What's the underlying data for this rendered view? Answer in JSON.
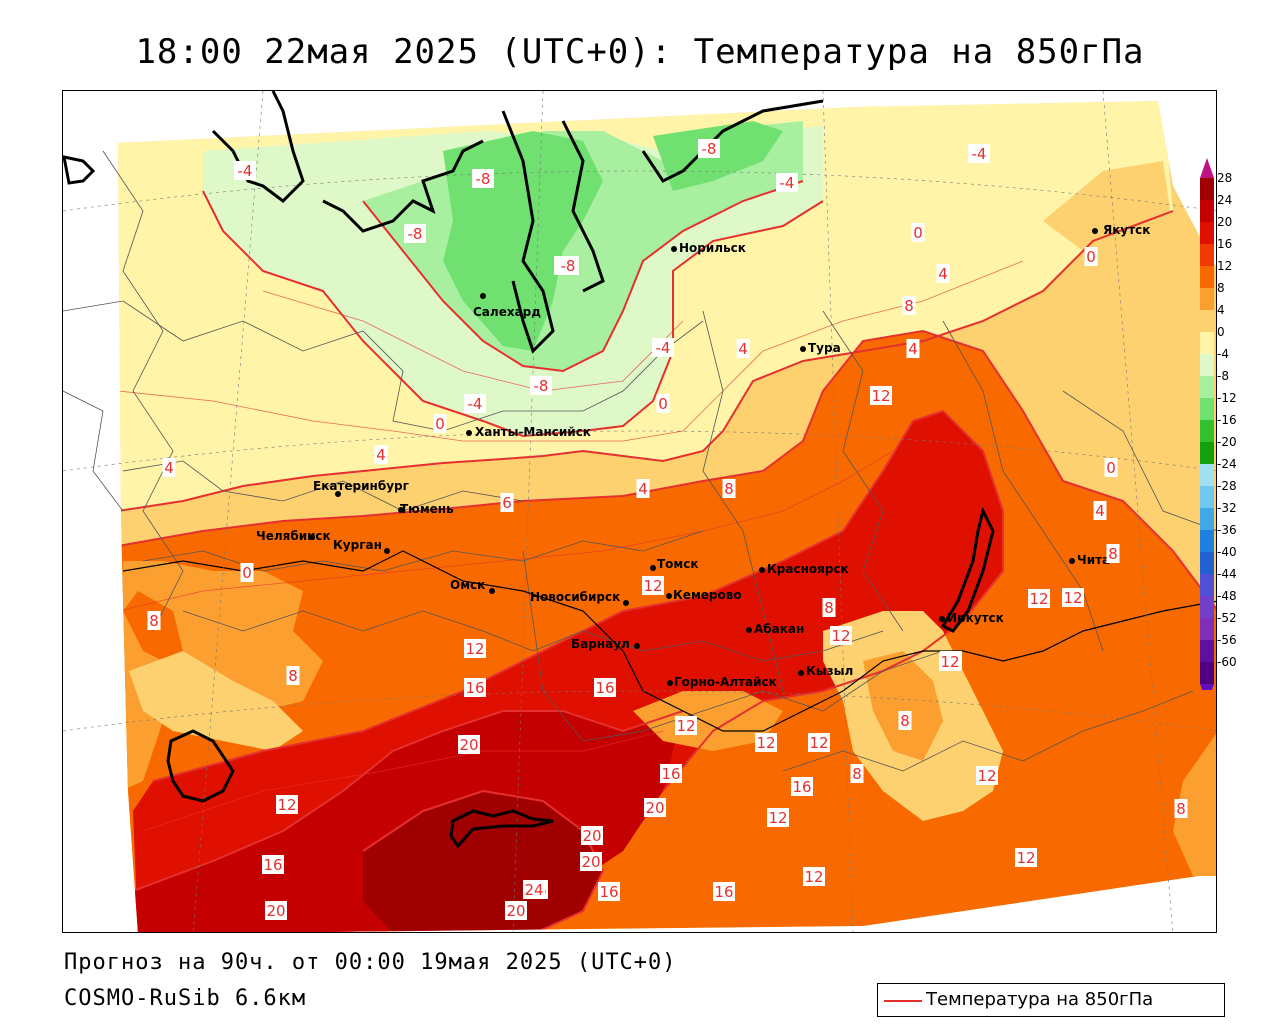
{
  "title": "18:00 22мая 2025 (UTC+0): Температура на 850гПа",
  "footer": {
    "forecast": "Прогноз на 90ч. от 00:00 19мая 2025 (UTC+0)",
    "model": "COSMO-RuSib 6.6км"
  },
  "legend": {
    "label": "Температура на 850гПа",
    "line_color": "#e53030"
  },
  "colorbar": {
    "levels": [
      "28",
      "24",
      "20",
      "16",
      "12",
      "8",
      "4",
      "0",
      "-4",
      "-8",
      "-12",
      "-16",
      "-20",
      "-24",
      "-28",
      "-32",
      "-36",
      "-40",
      "-44",
      "-48",
      "-52",
      "-56",
      "-60"
    ],
    "colors": [
      "#a00000",
      "#c40000",
      "#e01000",
      "#f03a00",
      "#f86a00",
      "#fba030",
      "#fdd070",
      "#fff4a8",
      "#dff8c8",
      "#a8f0a0",
      "#70e070",
      "#30c030",
      "#10a010",
      "#a0e0f0",
      "#70c8f0",
      "#40a8e8",
      "#2080e0",
      "#2060d0",
      "#5050d8",
      "#7040c8",
      "#8030b8",
      "#6010a0",
      "#500080"
    ],
    "top_arrow_color": "#c0108a",
    "bottom_arrow_color": "#6010c0"
  },
  "cities": [
    {
      "name": "Якутск"
    },
    {
      "name": "Норильск"
    },
    {
      "name": "Салехард"
    },
    {
      "name": "Тура"
    },
    {
      "name": "Ханты-Мансийск"
    },
    {
      "name": "Екатеринбург"
    },
    {
      "name": "Тюмень"
    },
    {
      "name": "Челябинск"
    },
    {
      "name": "Курган"
    },
    {
      "name": "Омск"
    },
    {
      "name": "Томск"
    },
    {
      "name": "Новосибирск"
    },
    {
      "name": "Кемерово"
    },
    {
      "name": "Красноярск"
    },
    {
      "name": "Абакан"
    },
    {
      "name": "Барнаул"
    },
    {
      "name": "Горно-Алтайск"
    },
    {
      "name": "Кызыл"
    },
    {
      "name": "Иркутск"
    },
    {
      "name": "Чита"
    }
  ],
  "isotherm_labels": [
    "-4",
    "-8",
    "-8",
    "-8",
    "-4",
    "-4",
    "0",
    "-8",
    "-8",
    "-4",
    "4",
    "0",
    "-4",
    "0",
    "0",
    "4",
    "4",
    "4",
    "8",
    "-8",
    "0",
    "4",
    "8",
    "12",
    "0",
    "6",
    "4",
    "8",
    "4",
    "8",
    "8",
    "12",
    "12",
    "12",
    "12",
    "12",
    "12",
    "8",
    "12",
    "16",
    "16",
    "12",
    "8",
    "20",
    "16",
    "12",
    "12",
    "8",
    "12",
    "16",
    "20",
    "20",
    "12",
    "8",
    "12",
    "12",
    "16",
    "20",
    "16",
    "16",
    "24",
    "20",
    "16",
    "12",
    "20"
  ]
}
